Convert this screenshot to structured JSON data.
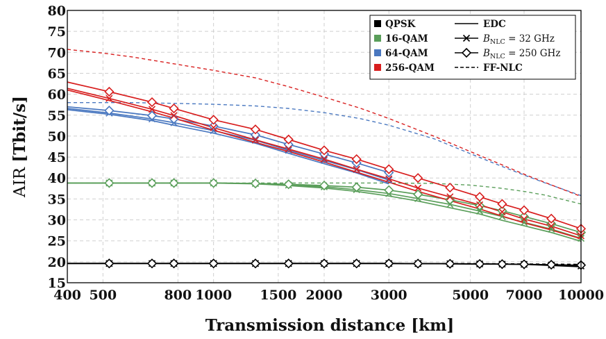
{
  "chart_data": {
    "type": "line",
    "xscale": "log",
    "xlabel": "Transmission distance [km]",
    "ylabel_prefix": "AIR",
    "ylabel_unit": "[Tbit/s]",
    "xlim": [
      400,
      10000
    ],
    "ylim": [
      15,
      80
    ],
    "grid": true,
    "xticks": [
      400,
      500,
      800,
      1000,
      1500,
      2000,
      3000,
      5000,
      7000,
      10000
    ],
    "xtick_labels": [
      "400",
      "500",
      "800",
      "1000",
      "1500",
      "2000",
      "3000",
      "5000",
      "7000",
      "10000"
    ],
    "yticks": [
      15,
      20,
      25,
      30,
      35,
      40,
      45,
      50,
      55,
      60,
      65,
      70,
      75,
      80
    ],
    "ytick_labels": [
      "15",
      "20",
      "25",
      "30",
      "35",
      "40",
      "45",
      "50",
      "55",
      "60",
      "65",
      "70",
      "75",
      "80"
    ],
    "marker_x": [
      520,
      680,
      780,
      1000,
      1300,
      1600,
      2000,
      2450,
      3000,
      3600,
      4400,
      5300,
      6100,
      7000,
      8300,
      10000
    ],
    "legend": {
      "placement": "top-right",
      "formats": [
        "QPSK",
        "16-QAM",
        "64-QAM",
        "256-QAM"
      ],
      "styles": [
        {
          "label": "EDC"
        },
        {
          "label_main": "B",
          "label_sub": "NLC",
          "label_rest": " = 32 GHz"
        },
        {
          "label_main": "B",
          "label_sub": "NLC",
          "label_rest": " = 250 GHz"
        },
        {
          "label": "FF-NLC"
        }
      ]
    },
    "colors": {
      "QPSK": "#000000",
      "16-QAM": "#5a9e5a",
      "64-QAM": "#4a78c0",
      "256-QAM": "#d81e1e"
    },
    "series": [
      {
        "name": "QPSK EDC",
        "format": "QPSK",
        "style": "solid",
        "marker": "none",
        "x": [
          400,
          1000,
          3000,
          5000,
          7000,
          10000
        ],
        "y": [
          19.6,
          19.6,
          19.6,
          19.5,
          19.4,
          18.8
        ]
      },
      {
        "name": "QPSK 32 GHz",
        "format": "QPSK",
        "style": "solid",
        "marker": "x",
        "x": [
          400,
          1000,
          3000,
          5000,
          7000,
          10000
        ],
        "y": [
          19.6,
          19.6,
          19.6,
          19.5,
          19.4,
          19.0
        ]
      },
      {
        "name": "QPSK 250 GHz",
        "format": "QPSK",
        "style": "solid",
        "marker": "diamond",
        "x": [
          400,
          1000,
          3000,
          5000,
          7000,
          10000
        ],
        "y": [
          19.6,
          19.6,
          19.6,
          19.5,
          19.4,
          19.2
        ]
      },
      {
        "name": "QPSK FF-NLC",
        "format": "QPSK",
        "style": "dashed",
        "marker": "none",
        "x": [
          400,
          1000,
          3000,
          5000,
          7000,
          10000
        ],
        "y": [
          19.6,
          19.6,
          19.6,
          19.6,
          19.5,
          19.4
        ]
      },
      {
        "name": "16-QAM EDC",
        "format": "16-QAM",
        "style": "solid",
        "marker": "none",
        "x": [
          400,
          1000,
          1300,
          1600,
          2000,
          2450,
          3000,
          3600,
          4400,
          5300,
          6100,
          7000,
          8300,
          10000
        ],
        "y": [
          38.8,
          38.8,
          38.6,
          38.2,
          37.6,
          36.8,
          35.7,
          34.5,
          32.9,
          31.4,
          29.9,
          28.6,
          27.0,
          24.9
        ]
      },
      {
        "name": "16-QAM 32 GHz",
        "format": "16-QAM",
        "style": "solid",
        "marker": "x",
        "x": [
          400,
          1000,
          1300,
          1600,
          2000,
          2450,
          3000,
          3600,
          4400,
          5300,
          6100,
          7000,
          8300,
          10000
        ],
        "y": [
          38.8,
          38.8,
          38.7,
          38.3,
          37.9,
          37.2,
          36.3,
          35.1,
          33.7,
          32.1,
          30.8,
          29.4,
          27.8,
          25.6
        ]
      },
      {
        "name": "16-QAM 250 GHz",
        "format": "16-QAM",
        "style": "solid",
        "marker": "diamond",
        "x": [
          400,
          1000,
          1300,
          1600,
          2000,
          2450,
          3000,
          3600,
          4400,
          5300,
          6100,
          7000,
          8300,
          10000
        ],
        "y": [
          38.8,
          38.8,
          38.7,
          38.5,
          38.2,
          37.8,
          37.1,
          36.1,
          34.8,
          33.4,
          32.2,
          30.8,
          29.1,
          27.0
        ]
      },
      {
        "name": "16-QAM FF-NLC",
        "format": "16-QAM",
        "style": "dashed",
        "marker": "none",
        "x": [
          400,
          1000,
          2000,
          3000,
          4000,
          5000,
          6000,
          7000,
          8000,
          10000
        ],
        "y": [
          38.8,
          38.8,
          38.8,
          38.8,
          38.7,
          38.3,
          37.6,
          36.8,
          35.9,
          33.8
        ]
      },
      {
        "name": "64-QAM EDC",
        "format": "64-QAM",
        "style": "solid",
        "marker": "none",
        "x": [
          400,
          520,
          680,
          780,
          1000,
          1300,
          1600,
          2000,
          2450,
          3000
        ],
        "y": [
          56.3,
          55.2,
          53.7,
          52.6,
          50.7,
          48.3,
          45.9,
          43.4,
          41.2,
          38.6
        ]
      },
      {
        "name": "64-QAM 32 GHz",
        "format": "64-QAM",
        "style": "solid",
        "marker": "x",
        "x": [
          400,
          520,
          680,
          780,
          1000,
          1300,
          1600,
          2000,
          2450,
          3000
        ],
        "y": [
          56.6,
          55.5,
          54.1,
          53.2,
          51.3,
          49.0,
          46.6,
          44.2,
          42.0,
          39.5
        ]
      },
      {
        "name": "64-QAM 250 GHz",
        "format": "64-QAM",
        "style": "solid",
        "marker": "diamond",
        "x": [
          400,
          520,
          680,
          780,
          1000,
          1300,
          1600,
          2000,
          2450,
          3000
        ],
        "y": [
          57.0,
          56.1,
          54.9,
          54.1,
          52.4,
          50.3,
          48.0,
          45.7,
          43.6,
          41.3
        ]
      },
      {
        "name": "64-QAM FF-NLC",
        "format": "64-QAM",
        "style": "dashed",
        "marker": "none",
        "x": [
          400,
          600,
          800,
          1000,
          1300,
          1600,
          2000,
          2500,
          3000,
          4000,
          5000,
          6000,
          7000,
          8000,
          10000
        ],
        "y": [
          58.0,
          58.0,
          57.8,
          57.6,
          57.2,
          56.6,
          55.6,
          54.2,
          52.6,
          49.3,
          45.8,
          43.0,
          40.7,
          38.8,
          35.8
        ]
      },
      {
        "name": "256-QAM EDC",
        "format": "256-QAM",
        "style": "solid",
        "marker": "none",
        "x": [
          400,
          520,
          680,
          780,
          1000,
          1300,
          1600,
          2000,
          2450,
          3000,
          3600,
          4400,
          5300,
          6100,
          7000,
          8300,
          10000
        ],
        "y": [
          61.0,
          58.5,
          55.8,
          54.3,
          51.4,
          48.5,
          46.3,
          43.8,
          41.4,
          39.0,
          36.8,
          34.6,
          32.6,
          30.9,
          29.3,
          27.6,
          25.5
        ]
      },
      {
        "name": "256-QAM 32 GHz",
        "format": "256-QAM",
        "style": "solid",
        "marker": "x",
        "x": [
          400,
          520,
          680,
          780,
          1000,
          1300,
          1600,
          2000,
          2450,
          3000,
          3600,
          4400,
          5300,
          6100,
          7000,
          8300,
          10000
        ],
        "y": [
          61.4,
          59.0,
          56.4,
          54.9,
          52.0,
          49.1,
          46.9,
          44.5,
          42.1,
          39.8,
          37.6,
          35.5,
          33.6,
          31.9,
          30.2,
          28.5,
          26.2
        ]
      },
      {
        "name": "256-QAM 250 GHz",
        "format": "256-QAM",
        "style": "solid",
        "marker": "diamond",
        "x": [
          400,
          520,
          680,
          780,
          1000,
          1300,
          1600,
          2000,
          2450,
          3000,
          3600,
          4400,
          5300,
          6100,
          7000,
          8300,
          10000
        ],
        "y": [
          62.9,
          60.6,
          58.1,
          56.6,
          53.9,
          51.6,
          49.2,
          46.6,
          44.5,
          42.1,
          40.0,
          37.7,
          35.5,
          33.8,
          32.3,
          30.3,
          27.9
        ]
      },
      {
        "name": "256-QAM FF-NLC",
        "format": "256-QAM",
        "style": "dashed",
        "marker": "none",
        "x": [
          400,
          500,
          600,
          800,
          1000,
          1300,
          1600,
          2000,
          2500,
          3000,
          4000,
          5000,
          6000,
          7000,
          8000,
          10000
        ],
        "y": [
          70.7,
          69.8,
          68.9,
          67.1,
          65.7,
          63.9,
          61.8,
          59.3,
          56.7,
          54.2,
          49.9,
          46.3,
          43.4,
          40.9,
          38.9,
          35.6
        ]
      }
    ]
  }
}
